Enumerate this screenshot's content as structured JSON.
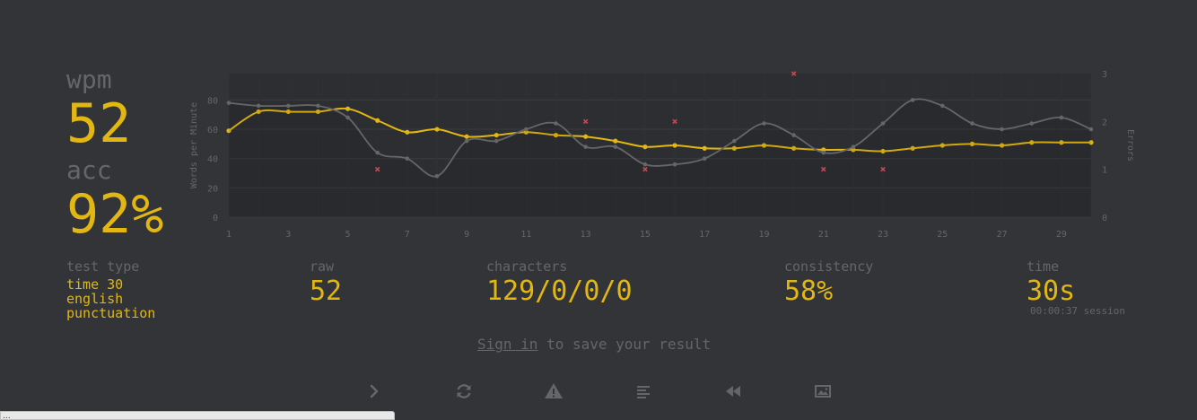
{
  "stats": {
    "wpm_label": "wpm",
    "wpm_value": "52",
    "acc_label": "acc",
    "acc_value": "92%"
  },
  "details": {
    "test_type_label": "test type",
    "test_type_values": [
      "time 30",
      "english",
      "punctuation"
    ],
    "raw_label": "raw",
    "raw_value": "52",
    "characters_label": "characters",
    "characters_value": "129/0/0/0",
    "consistency_label": "consistency",
    "consistency_value": "58%",
    "time_label": "time",
    "time_value": "30s",
    "session_time": "00:00:37 session"
  },
  "signin": {
    "link_text": "Sign in",
    "rest_text": " to save your result"
  },
  "buttons": [
    {
      "name": "next-test-button",
      "icon": "chevron-right-icon"
    },
    {
      "name": "restart-test-button",
      "icon": "refresh-icon"
    },
    {
      "name": "report-button",
      "icon": "warning-icon"
    },
    {
      "name": "word-history-button",
      "icon": "align-left-icon"
    },
    {
      "name": "replay-button",
      "icon": "backward-icon"
    },
    {
      "name": "save-screenshot-button",
      "icon": "image-icon"
    }
  ],
  "url_bar": "...",
  "colors": {
    "background": "#323437",
    "accent": "#e2b714",
    "subtext": "#646669",
    "error": "#ca4754"
  },
  "chart_data": {
    "type": "line",
    "x": [
      1,
      2,
      3,
      4,
      5,
      6,
      7,
      8,
      9,
      10,
      11,
      12,
      13,
      14,
      15,
      16,
      17,
      18,
      19,
      20,
      21,
      22,
      23,
      24,
      25,
      26,
      27,
      28,
      29,
      30
    ],
    "x_ticks": [
      1,
      3,
      5,
      7,
      9,
      11,
      13,
      15,
      17,
      19,
      21,
      23,
      25,
      27,
      29
    ],
    "y_ticks": [
      0,
      20,
      40,
      60,
      80
    ],
    "y2_ticks": [
      0,
      1,
      2,
      3
    ],
    "ylabel": "Words per Minute",
    "y2label": "Errors",
    "ylim": [
      0,
      98
    ],
    "y2lim": [
      0,
      3
    ],
    "grid": true,
    "series": [
      {
        "role": "wpm",
        "color": "#e2b714",
        "values": [
          59,
          72,
          72,
          72,
          74,
          66,
          58,
          60,
          55,
          56,
          58,
          56,
          55,
          52,
          48,
          49,
          47,
          47,
          49,
          47,
          46,
          46,
          45,
          47,
          49,
          50,
          49,
          51,
          51,
          51
        ]
      },
      {
        "role": "raw",
        "color": "#646669",
        "values": [
          78,
          76,
          76,
          76,
          68,
          44,
          40,
          28,
          52,
          52,
          60,
          64,
          48,
          48,
          36,
          36,
          40,
          52,
          64,
          56,
          44,
          48,
          64,
          80,
          76,
          64,
          60,
          64,
          68,
          60
        ]
      },
      {
        "role": "errors",
        "color": "#ca4754",
        "points": [
          [
            6,
            1
          ],
          [
            13,
            2
          ],
          [
            15,
            1
          ],
          [
            16,
            2
          ],
          [
            20,
            3
          ],
          [
            21,
            1
          ],
          [
            23,
            1
          ]
        ]
      }
    ]
  }
}
